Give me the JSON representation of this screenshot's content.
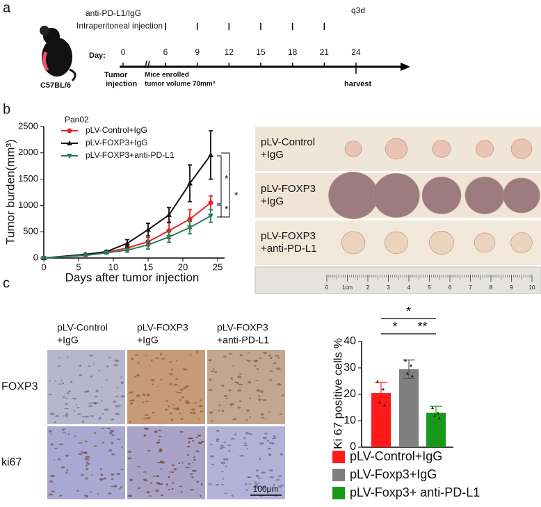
{
  "figure": {
    "panel_labels": [
      "a",
      "b",
      "c"
    ]
  },
  "panel_a": {
    "treatment": "anti-PD-L1/IgG",
    "route": "Intraperitoneal injection",
    "schedule": "q3d",
    "strain": "C57BL/6",
    "day_label": "Day:",
    "days": [
      0,
      6,
      9,
      12,
      15,
      18,
      21,
      24
    ],
    "injection_days": [
      6,
      9,
      12,
      15,
      18,
      21
    ],
    "events": {
      "start": [
        "Tumor",
        "injection"
      ],
      "enrolled": [
        "Mice enrolled",
        "tumor volume 70mm³"
      ],
      "end": "harvest"
    }
  },
  "chart_data": [
    {
      "type": "line",
      "legend_title": "Pan02",
      "xlabel": "Days after tumor injection",
      "ylabel": "Tumor burden(mm³)",
      "x": [
        0,
        6,
        9,
        12,
        15,
        18,
        21,
        24
      ],
      "xlim": [
        0,
        26
      ],
      "xticks": [
        0,
        5,
        10,
        15,
        20,
        25
      ],
      "ylim": [
        0,
        2500
      ],
      "yticks": [
        0,
        500,
        1000,
        1500,
        2000,
        2500
      ],
      "series": [
        {
          "name": "pLV-Control+IgG",
          "color": "#e8242a",
          "marker": "circle",
          "values": [
            0,
            60,
            110,
            190,
            310,
            520,
            740,
            1050
          ],
          "errors": [
            0,
            10,
            20,
            50,
            80,
            150,
            180,
            130
          ]
        },
        {
          "name": "pLV-FOXP3+IgG",
          "color": "#111111",
          "marker": "triangle",
          "values": [
            0,
            70,
            120,
            280,
            540,
            820,
            1420,
            1960
          ],
          "errors": [
            0,
            15,
            25,
            70,
            120,
            140,
            350,
            460
          ]
        },
        {
          "name": "pLV-FOXP3+anti-PD-L1",
          "color": "#2a7a5a",
          "marker": "triangle-down",
          "values": [
            0,
            50,
            100,
            150,
            250,
            400,
            580,
            800
          ],
          "errors": [
            0,
            10,
            20,
            40,
            80,
            100,
            120,
            120
          ]
        }
      ],
      "annotations": [
        "*",
        "*",
        "*"
      ]
    },
    {
      "type": "bar",
      "ylabel": "Ki 67 positive cells %",
      "ylim": [
        0,
        40
      ],
      "yticks": [
        0,
        10,
        20,
        30,
        40
      ],
      "series": [
        {
          "name": "pLV-Control+IgG",
          "color": "#ff1a1a",
          "values": [
            20.5
          ],
          "errors": [
            4
          ],
          "points": [
            25,
            22,
            17,
            16
          ]
        },
        {
          "name": "pLV-Foxp3+IgG",
          "color": "#7f7f7f",
          "values": [
            29.5
          ],
          "errors": [
            3.5
          ],
          "points": [
            33,
            31,
            28,
            27
          ]
        },
        {
          "name": "pLV-Foxp3+ anti-PD-L1",
          "color": "#1a9a1a",
          "values": [
            13
          ],
          "errors": [
            2.5
          ],
          "points": [
            15,
            13,
            12,
            11
          ]
        }
      ],
      "annotations": [
        "*",
        "**",
        "*"
      ]
    }
  ],
  "panel_b_photos": {
    "row_labels": [
      [
        "pLV-Control",
        "+IgG"
      ],
      [
        "pLV-FOXP3",
        "+IgG"
      ],
      [
        "pLV-FOXP3",
        "+anti-PD-L1"
      ]
    ],
    "ruler_labels": [
      "0",
      "1cm",
      "2",
      "3",
      "4",
      "5",
      "6",
      "7",
      "8",
      "9",
      "10"
    ]
  },
  "panel_c_ihc": {
    "column_labels": [
      [
        "pLV-Control",
        "+IgG"
      ],
      [
        "pLV-FOXP3",
        "+IgG"
      ],
      [
        "pLV-FOXP3",
        "+anti-PD-L1"
      ]
    ],
    "row_labels": [
      "FOXP3",
      "ki67"
    ],
    "scale_bar": "100μm"
  }
}
